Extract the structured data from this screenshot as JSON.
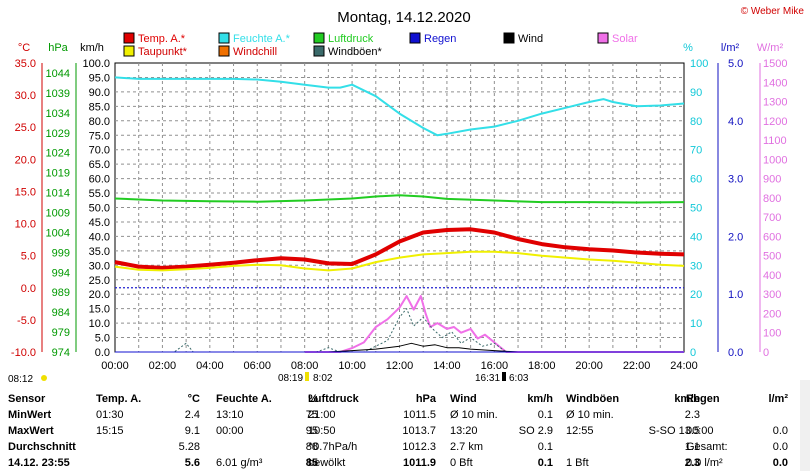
{
  "header": {
    "title": "Montag, 14.12.2020",
    "copyright": "© Weber Mike"
  },
  "legend": [
    {
      "label": "Temp. A.*",
      "color": "#e00000"
    },
    {
      "label": "Feuchte A.*",
      "color": "#33dfe8"
    },
    {
      "label": "Luftdruck",
      "color": "#22cc22"
    },
    {
      "label": "Regen",
      "color": "#1010d0"
    },
    {
      "label": "Wind",
      "color": "#000000"
    },
    {
      "label": "Solar",
      "color": "#f070e8"
    },
    {
      "label": "Taupunkt*",
      "color": "#f0f000"
    },
    {
      "label": "Windchill",
      "color": "#f07000"
    },
    {
      "label": "Windböen*",
      "color": "#3a6a6a"
    }
  ],
  "chart_data": {
    "type": "line",
    "x_unit": "time of day",
    "x_range": [
      "00:00",
      "24:00"
    ],
    "x_ticks": [
      "00:00",
      "02:00",
      "04:00",
      "06:00",
      "08:00",
      "10:00",
      "12:00",
      "14:00",
      "16:00",
      "18:00",
      "20:00",
      "22:00",
      "24:00"
    ],
    "axes": {
      "temp": {
        "label": "°C",
        "min": -10,
        "max": 35,
        "ticks": [
          "35.0",
          "30.0",
          "25.0",
          "20.0",
          "15.0",
          "10.0",
          "5.0",
          "0.0",
          "-5.0",
          "-10.0"
        ]
      },
      "pressure": {
        "label": "hPa",
        "min": 974,
        "max": 1046.5,
        "ticks": [
          "1044",
          "1039",
          "1034",
          "1029",
          "1024",
          "1019",
          "1014",
          "1009",
          "1004",
          "999",
          "994",
          "989",
          "984",
          "979",
          "974"
        ]
      },
      "wind": {
        "label": "km/h",
        "min": 0,
        "max": 100,
        "ticks": [
          "100.0",
          "95.0",
          "90.0",
          "85.0",
          "80.0",
          "75.0",
          "70.0",
          "65.0",
          "60.0",
          "55.0",
          "50.0",
          "45.0",
          "40.0",
          "35.0",
          "30.0",
          "25.0",
          "20.0",
          "15.0",
          "10.0",
          "5.0",
          "0.0"
        ]
      },
      "humidity": {
        "label": "%",
        "min": 0,
        "max": 100,
        "ticks": [
          "100",
          "90",
          "80",
          "70",
          "60",
          "50",
          "40",
          "30",
          "20",
          "10",
          "0"
        ]
      },
      "rain": {
        "label": "l/m²",
        "min": 0,
        "max": 5,
        "ticks": [
          "5.0",
          "4.0",
          "3.0",
          "2.0",
          "1.0",
          "0.0"
        ]
      },
      "solar": {
        "label": "W/m²",
        "min": 0,
        "max": 1500,
        "ticks": [
          "1500",
          "1400",
          "1300",
          "1200",
          "1100",
          "1000",
          "900",
          "800",
          "700",
          "600",
          "500",
          "400",
          "300",
          "200",
          "100",
          "0"
        ]
      }
    },
    "series": [
      {
        "name": "Temp. A.*",
        "axis": "temp",
        "color": "#e00000",
        "points": [
          [
            0,
            4.0
          ],
          [
            1,
            3.3
          ],
          [
            2,
            3.1
          ],
          [
            3,
            3.3
          ],
          [
            4,
            3.6
          ],
          [
            5,
            3.9
          ],
          [
            6,
            4.3
          ],
          [
            7,
            4.6
          ],
          [
            8,
            4.4
          ],
          [
            9,
            3.8
          ],
          [
            10,
            3.7
          ],
          [
            11,
            5.2
          ],
          [
            12,
            7.2
          ],
          [
            13,
            8.6
          ],
          [
            14,
            9.0
          ],
          [
            15,
            9.1
          ],
          [
            16,
            8.6
          ],
          [
            17,
            7.6
          ],
          [
            18,
            6.8
          ],
          [
            19,
            6.3
          ],
          [
            20,
            6.0
          ],
          [
            21,
            5.8
          ],
          [
            22,
            5.5
          ],
          [
            23,
            5.3
          ],
          [
            24,
            5.2
          ]
        ]
      },
      {
        "name": "Taupunkt*",
        "axis": "temp",
        "color": "#f0f000",
        "points": [
          [
            0,
            3.3
          ],
          [
            1,
            2.8
          ],
          [
            2,
            2.7
          ],
          [
            3,
            2.9
          ],
          [
            4,
            3.1
          ],
          [
            5,
            3.4
          ],
          [
            6,
            3.6
          ],
          [
            7,
            3.5
          ],
          [
            8,
            3.0
          ],
          [
            9,
            2.7
          ],
          [
            10,
            3.0
          ],
          [
            11,
            4.0
          ],
          [
            12,
            4.7
          ],
          [
            13,
            5.2
          ],
          [
            14,
            5.4
          ],
          [
            15,
            5.6
          ],
          [
            16,
            5.6
          ],
          [
            17,
            5.4
          ],
          [
            18,
            5.0
          ],
          [
            19,
            4.7
          ],
          [
            20,
            4.4
          ],
          [
            21,
            4.2
          ],
          [
            22,
            3.9
          ],
          [
            23,
            3.6
          ],
          [
            24,
            3.4
          ]
        ]
      },
      {
        "name": "Feuchte A.*",
        "axis": "humidity",
        "color": "#33dfe8",
        "points": [
          [
            0,
            95
          ],
          [
            1,
            94.5
          ],
          [
            2,
            94.5
          ],
          [
            3,
            94.5
          ],
          [
            4,
            94.5
          ],
          [
            5,
            94.5
          ],
          [
            6,
            94.3
          ],
          [
            7,
            93.5
          ],
          [
            8,
            92.5
          ],
          [
            9,
            91.5
          ],
          [
            9.5,
            91.5
          ],
          [
            10,
            92.5
          ],
          [
            11,
            88.5
          ],
          [
            12,
            82.5
          ],
          [
            13,
            77.5
          ],
          [
            13.6,
            75
          ],
          [
            14,
            75.5
          ],
          [
            15,
            77
          ],
          [
            16,
            78
          ],
          [
            17,
            80
          ],
          [
            18,
            82.5
          ],
          [
            19,
            84.5
          ],
          [
            20,
            86.5
          ],
          [
            20.6,
            87.5
          ],
          [
            21,
            86.5
          ],
          [
            22,
            85
          ],
          [
            23,
            85.3
          ],
          [
            24,
            86
          ]
        ]
      },
      {
        "name": "Luftdruck",
        "axis": "pressure",
        "color": "#22cc22",
        "points": [
          [
            0,
            1012.5
          ],
          [
            2,
            1012.0
          ],
          [
            4,
            1011.8
          ],
          [
            6,
            1011.7
          ],
          [
            8,
            1012.0
          ],
          [
            10,
            1012.5
          ],
          [
            11,
            1013.0
          ],
          [
            12,
            1013.3
          ],
          [
            13,
            1013.0
          ],
          [
            14,
            1012.4
          ],
          [
            16,
            1012.0
          ],
          [
            18,
            1011.6
          ],
          [
            20,
            1011.6
          ],
          [
            22,
            1011.5
          ],
          [
            24,
            1011.6
          ]
        ]
      },
      {
        "name": "Solar",
        "axis": "solar",
        "color": "#f070e8",
        "points": [
          [
            8,
            0
          ],
          [
            9.5,
            0
          ],
          [
            10,
            20
          ],
          [
            10.5,
            50
          ],
          [
            11,
            130
          ],
          [
            11.5,
            170
          ],
          [
            12,
            230
          ],
          [
            12.3,
            290
          ],
          [
            12.6,
            220
          ],
          [
            12.9,
            290
          ],
          [
            13.1,
            200
          ],
          [
            13.3,
            130
          ],
          [
            13.6,
            150
          ],
          [
            14,
            120
          ],
          [
            14.3,
            130
          ],
          [
            14.6,
            100
          ],
          [
            15,
            120
          ],
          [
            15.3,
            70
          ],
          [
            15.6,
            90
          ],
          [
            16,
            50
          ],
          [
            16.3,
            20
          ],
          [
            16.5,
            0
          ],
          [
            24,
            0
          ]
        ]
      },
      {
        "name": "Windböen*",
        "axis": "wind",
        "color": "#3a6a6a",
        "points": [
          [
            0,
            0
          ],
          [
            2.5,
            0
          ],
          [
            3.0,
            3
          ],
          [
            3.3,
            0
          ],
          [
            8.5,
            0
          ],
          [
            9,
            1.5
          ],
          [
            9.5,
            0
          ],
          [
            10.5,
            0
          ],
          [
            11,
            2
          ],
          [
            11.5,
            4
          ],
          [
            12,
            12
          ],
          [
            12.3,
            15
          ],
          [
            12.6,
            9
          ],
          [
            13,
            12
          ],
          [
            13.4,
            8
          ],
          [
            13.8,
            5
          ],
          [
            14.2,
            7
          ],
          [
            14.6,
            3
          ],
          [
            15,
            5
          ],
          [
            15.5,
            2
          ],
          [
            16,
            3
          ],
          [
            16.5,
            0
          ],
          [
            24,
            0
          ]
        ]
      },
      {
        "name": "Wind",
        "axis": "wind",
        "color": "#000000",
        "points": [
          [
            0,
            0
          ],
          [
            9,
            0
          ],
          [
            10,
            0.5
          ],
          [
            11,
            1
          ],
          [
            12,
            2
          ],
          [
            12.5,
            3
          ],
          [
            13,
            2
          ],
          [
            13.5,
            2.5
          ],
          [
            14,
            1.5
          ],
          [
            14.5,
            1.5
          ],
          [
            15,
            1
          ],
          [
            16,
            0.5
          ],
          [
            17,
            0
          ],
          [
            24,
            0
          ]
        ]
      },
      {
        "name": "Regen",
        "axis": "rain",
        "color": "#1010d0",
        "points": [
          [
            0,
            0
          ],
          [
            24,
            0
          ]
        ]
      }
    ],
    "zero_line": {
      "axis": "temp",
      "value": 0.0
    },
    "grid": true,
    "legend_placement": "top"
  },
  "time_markers": {
    "sunrise_label": "08:12",
    "left_marker": "08:19",
    "left_marker2": "8:02",
    "right_marker": "16:31",
    "right_marker2": "6:03"
  },
  "stats": {
    "headers": [
      "Sensor",
      "Temp. A.",
      "°C",
      "Feuchte A.",
      "%",
      "Luftdruck",
      "hPa",
      "Wind",
      "km/h",
      "Windböen",
      "km/h",
      "Regen",
      "l/m²"
    ],
    "minwert": [
      "MinWert",
      "01:30",
      "2.4",
      "13:10",
      "75",
      "21:00",
      "1011.5",
      "Ø 10 min.",
      "0.1",
      "Ø 10 min.",
      "2.3",
      "",
      ""
    ],
    "maxwert": [
      "MaxWert",
      "15:15",
      "9.1",
      "00:00",
      "95",
      "10:50",
      "1013.7",
      "13:20",
      "SO 2.9",
      "12:55",
      "S-SO 13.5",
      "00:00",
      "0.0"
    ],
    "durchschnitt": [
      "Durchschnitt",
      "",
      "5.28",
      "",
      "88",
      "^0.7hPa/h",
      "1012.3",
      "2.7 km",
      "0.1",
      "",
      "1.1",
      "Gesamt:",
      "0.0"
    ],
    "current": [
      "14.12. 23:55",
      "",
      "5.6",
      "6.01 g/m³",
      "85",
      "bewölkt",
      "1011.9",
      "0 Bft",
      "0.1",
      "1 Bft",
      "2.3",
      "0.0 l/m²",
      "0.0"
    ]
  }
}
